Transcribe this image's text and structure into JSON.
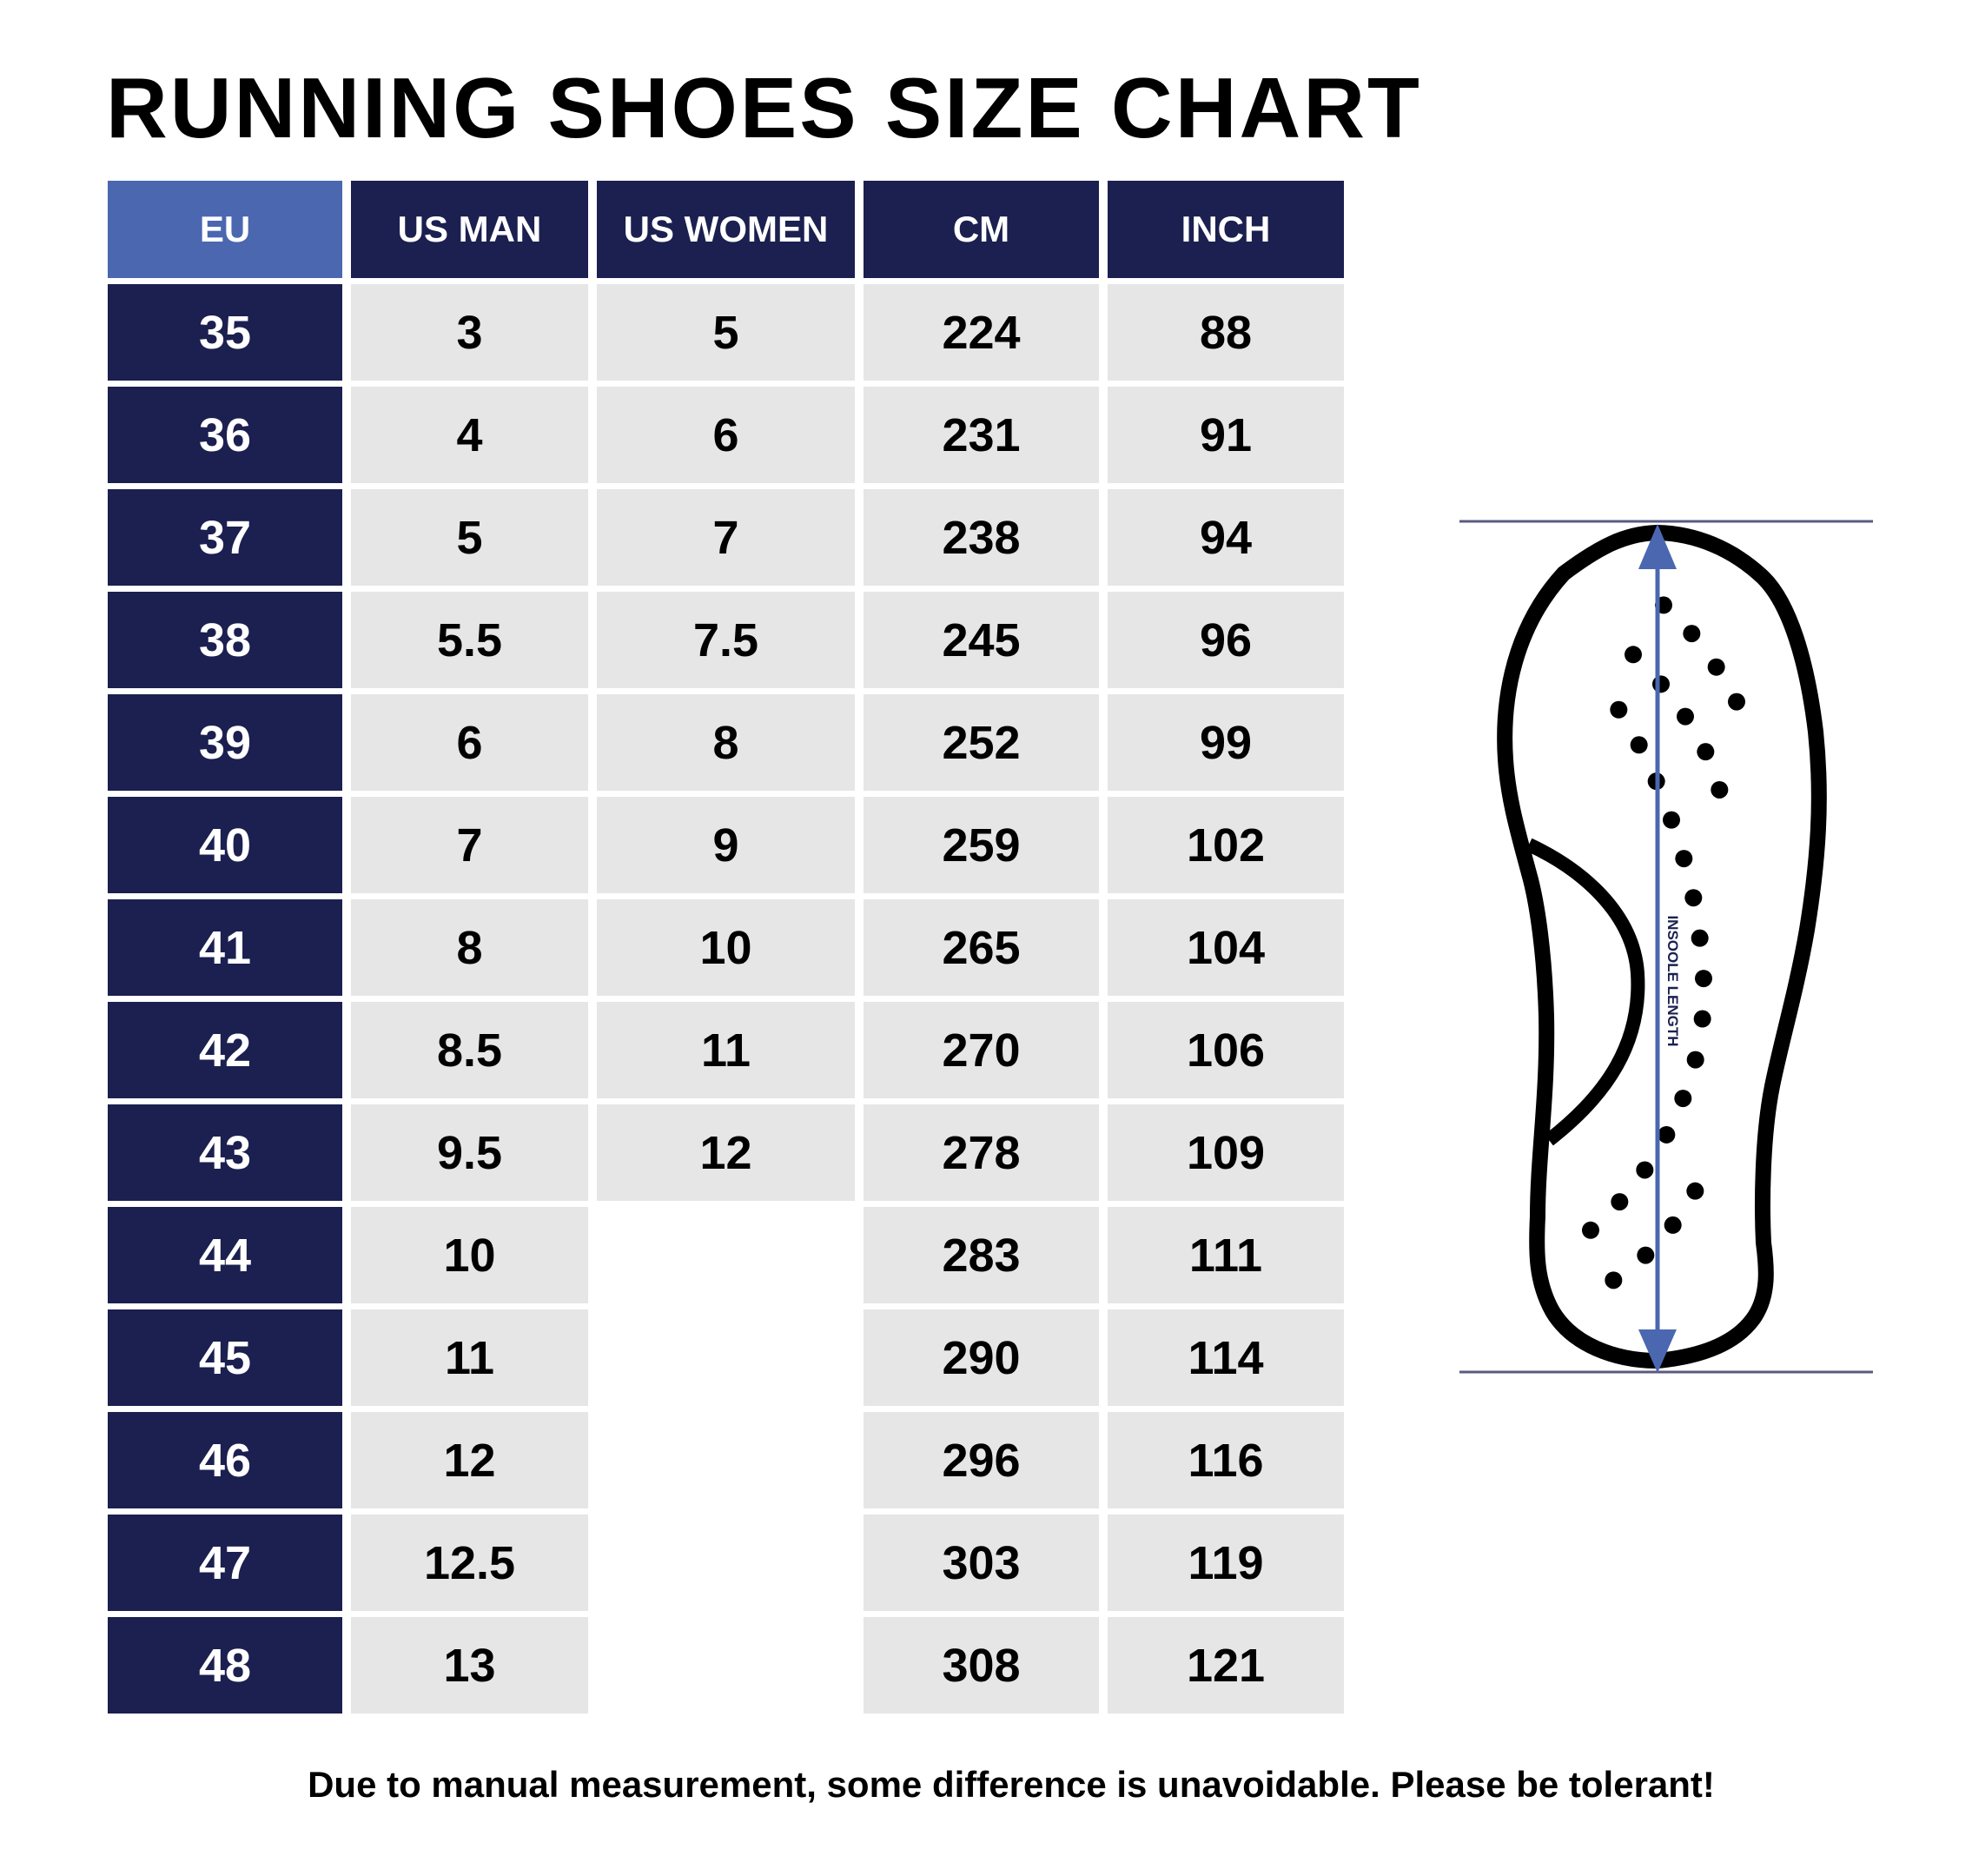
{
  "title": "RUNNING SHOES SIZE CHART",
  "table": {
    "headers": [
      "EU",
      "US MAN",
      "US WOMEN",
      "CM",
      "INCH"
    ],
    "rows": [
      [
        "35",
        "3",
        "5",
        "224",
        "88"
      ],
      [
        "36",
        "4",
        "6",
        "231",
        "91"
      ],
      [
        "37",
        "5",
        "7",
        "238",
        "94"
      ],
      [
        "38",
        "5.5",
        "7.5",
        "245",
        "96"
      ],
      [
        "39",
        "6",
        "8",
        "252",
        "99"
      ],
      [
        "40",
        "7",
        "9",
        "259",
        "102"
      ],
      [
        "41",
        "8",
        "10",
        "265",
        "104"
      ],
      [
        "42",
        "8.5",
        "11",
        "270",
        "106"
      ],
      [
        "43",
        "9.5",
        "12",
        "278",
        "109"
      ],
      [
        "44",
        "10",
        "",
        "283",
        "111"
      ],
      [
        "45",
        "11",
        "",
        "290",
        "114"
      ],
      [
        "46",
        "12",
        "",
        "296",
        "116"
      ],
      [
        "47",
        "12.5",
        "",
        "303",
        "119"
      ],
      [
        "48",
        "13",
        "",
        "308",
        "121"
      ]
    ]
  },
  "diagram": {
    "arrow_label": "INSOOLE LENGTH",
    "icon": "shoe-insole-icon"
  },
  "footer_note": "Due to manual measurement, some difference is unavoidable. Please be tolerant!",
  "colors": {
    "navy": "#1b2050",
    "eu_header": "#4a67b0",
    "cell_bg": "#e6e6e6",
    "arrow": "#4a67b0",
    "guide_line": "#5a5a80"
  }
}
